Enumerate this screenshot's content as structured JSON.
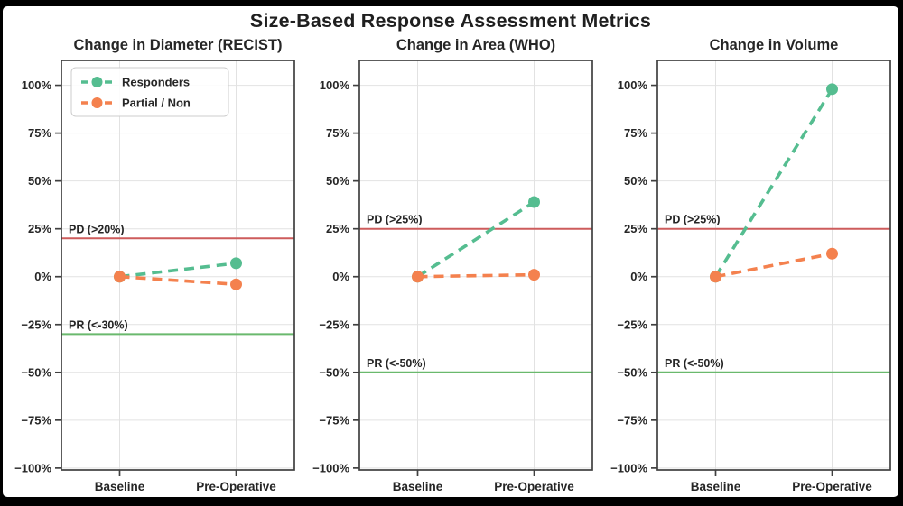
{
  "title": "Size-Based Response Assessment Metrics",
  "colors": {
    "responders": "#55bd90",
    "partial_non": "#f4814e",
    "pd_line": "#cd5c5c",
    "pr_line": "#6ab96d",
    "grid": "#e2e2e2",
    "spine": "#404040",
    "text": "#262626",
    "background": "#ffffff",
    "frame": "#000000"
  },
  "chart_data": [
    {
      "type": "line",
      "title": "Change in Diameter (RECIST)",
      "categories": [
        "Baseline",
        "Pre-Operative"
      ],
      "series": [
        {
          "name": "Responders",
          "values": [
            0,
            7
          ],
          "color": "#55bd90",
          "style": "dashed",
          "marker": "circle"
        },
        {
          "name": "Partial / Non",
          "values": [
            0,
            -4
          ],
          "color": "#f4814e",
          "style": "dashed",
          "marker": "circle"
        }
      ],
      "reference_lines": [
        {
          "label": "PD (>20%)",
          "value": 20,
          "color": "#cd5c5c"
        },
        {
          "label": "PR (<-30%)",
          "value": -30,
          "color": "#6ab96d"
        }
      ],
      "yticks": [
        {
          "value": 100,
          "label": "100%"
        },
        {
          "value": 75,
          "label": "75%"
        },
        {
          "value": 50,
          "label": "50%"
        },
        {
          "value": 25,
          "label": "25%"
        },
        {
          "value": 0,
          "label": "0%"
        },
        {
          "value": -25,
          "label": "−25%"
        },
        {
          "value": -50,
          "label": "−50%"
        },
        {
          "value": -75,
          "label": "−75%"
        },
        {
          "value": -100,
          "label": "−100%"
        }
      ],
      "ylim": [
        -100,
        100
      ],
      "grid": true,
      "legend": {
        "show": true,
        "position": "upper-left"
      }
    },
    {
      "type": "line",
      "title": "Change in Area (WHO)",
      "categories": [
        "Baseline",
        "Pre-Operative"
      ],
      "series": [
        {
          "name": "Responders",
          "values": [
            0,
            39
          ],
          "color": "#55bd90",
          "style": "dashed",
          "marker": "circle"
        },
        {
          "name": "Partial / Non",
          "values": [
            0,
            1
          ],
          "color": "#f4814e",
          "style": "dashed",
          "marker": "circle"
        }
      ],
      "reference_lines": [
        {
          "label": "PD (>25%)",
          "value": 25,
          "color": "#cd5c5c"
        },
        {
          "label": "PR (<-50%)",
          "value": -50,
          "color": "#6ab96d"
        }
      ],
      "yticks": [
        {
          "value": 100,
          "label": "100%"
        },
        {
          "value": 75,
          "label": "75%"
        },
        {
          "value": 50,
          "label": "50%"
        },
        {
          "value": 25,
          "label": "25%"
        },
        {
          "value": 0,
          "label": "0%"
        },
        {
          "value": -25,
          "label": "−25%"
        },
        {
          "value": -50,
          "label": "−50%"
        },
        {
          "value": -75,
          "label": "−75%"
        },
        {
          "value": -100,
          "label": "−100%"
        }
      ],
      "ylim": [
        -100,
        100
      ],
      "grid": true,
      "legend": {
        "show": false,
        "position": "upper-left"
      }
    },
    {
      "type": "line",
      "title": "Change in Volume",
      "categories": [
        "Baseline",
        "Pre-Operative"
      ],
      "series": [
        {
          "name": "Responders",
          "values": [
            0,
            98
          ],
          "color": "#55bd90",
          "style": "dashed",
          "marker": "circle"
        },
        {
          "name": "Partial / Non",
          "values": [
            0,
            12
          ],
          "color": "#f4814e",
          "style": "dashed",
          "marker": "circle"
        }
      ],
      "reference_lines": [
        {
          "label": "PD (>25%)",
          "value": 25,
          "color": "#cd5c5c"
        },
        {
          "label": "PR (<-50%)",
          "value": -50,
          "color": "#6ab96d"
        }
      ],
      "yticks": [
        {
          "value": 100,
          "label": "100%"
        },
        {
          "value": 75,
          "label": "75%"
        },
        {
          "value": 50,
          "label": "50%"
        },
        {
          "value": 25,
          "label": "25%"
        },
        {
          "value": 0,
          "label": "0%"
        },
        {
          "value": -25,
          "label": "−25%"
        },
        {
          "value": -50,
          "label": "−50%"
        },
        {
          "value": -75,
          "label": "−75%"
        },
        {
          "value": -100,
          "label": "−100%"
        }
      ],
      "ylim": [
        -100,
        100
      ],
      "grid": true,
      "legend": {
        "show": false,
        "position": "upper-left"
      }
    }
  ]
}
